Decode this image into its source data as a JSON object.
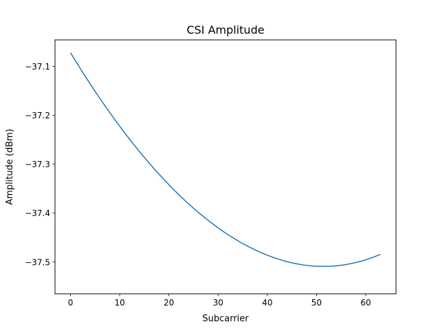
{
  "chart_data": {
    "type": "line",
    "title": "CSI Amplitude",
    "xlabel": "Subcarrier",
    "ylabel": "Amplitude (dBm)",
    "xlim": [
      -3.15,
      66.15
    ],
    "ylim": [
      -37.565,
      -37.046
    ],
    "xticks": [
      0,
      10,
      20,
      30,
      40,
      50,
      60
    ],
    "xtick_labels": [
      "0",
      "10",
      "20",
      "30",
      "40",
      "50",
      "60"
    ],
    "yticks": [
      -37.1,
      -37.2,
      -37.3,
      -37.4,
      -37.5
    ],
    "ytick_labels": [
      "−37.1",
      "−37.2",
      "−37.3",
      "−37.4",
      "−37.5"
    ],
    "grid": false,
    "legend": "none",
    "series": [
      {
        "color": "#1f77b4",
        "x": [
          0,
          1,
          2,
          3,
          4,
          5,
          6,
          7,
          8,
          9,
          10,
          11,
          12,
          13,
          14,
          15,
          16,
          17,
          18,
          19,
          20,
          21,
          22,
          23,
          24,
          25,
          26,
          27,
          28,
          29,
          30,
          31,
          32,
          33,
          34,
          35,
          36,
          37,
          38,
          39,
          40,
          41,
          42,
          43,
          44,
          45,
          46,
          47,
          48,
          49,
          50,
          51,
          52,
          53,
          54,
          55,
          56,
          57,
          58,
          59,
          60,
          61,
          62,
          63
        ],
        "y": [
          -37.0722,
          -37.0886,
          -37.1047,
          -37.1205,
          -37.136,
          -37.1512,
          -37.1661,
          -37.1806,
          -37.1949,
          -37.2089,
          -37.2225,
          -37.2359,
          -37.2489,
          -37.2616,
          -37.2741,
          -37.2862,
          -37.298,
          -37.3095,
          -37.3206,
          -37.3315,
          -37.342,
          -37.3523,
          -37.3622,
          -37.3718,
          -37.3811,
          -37.3901,
          -37.3987,
          -37.4071,
          -37.4151,
          -37.4228,
          -37.4302,
          -37.4373,
          -37.444,
          -37.4504,
          -37.4565,
          -37.4623,
          -37.4677,
          -37.4728,
          -37.4776,
          -37.482,
          -37.4861,
          -37.4899,
          -37.4934,
          -37.4965,
          -37.4993,
          -37.5017,
          -37.5038,
          -37.5055,
          -37.5069,
          -37.508,
          -37.5087,
          -37.509,
          -37.509,
          -37.5086,
          -37.5078,
          -37.5067,
          -37.5052,
          -37.5033,
          -37.5011,
          -37.4985,
          -37.4955,
          -37.4921,
          -37.4884,
          -37.4842
        ]
      }
    ]
  }
}
